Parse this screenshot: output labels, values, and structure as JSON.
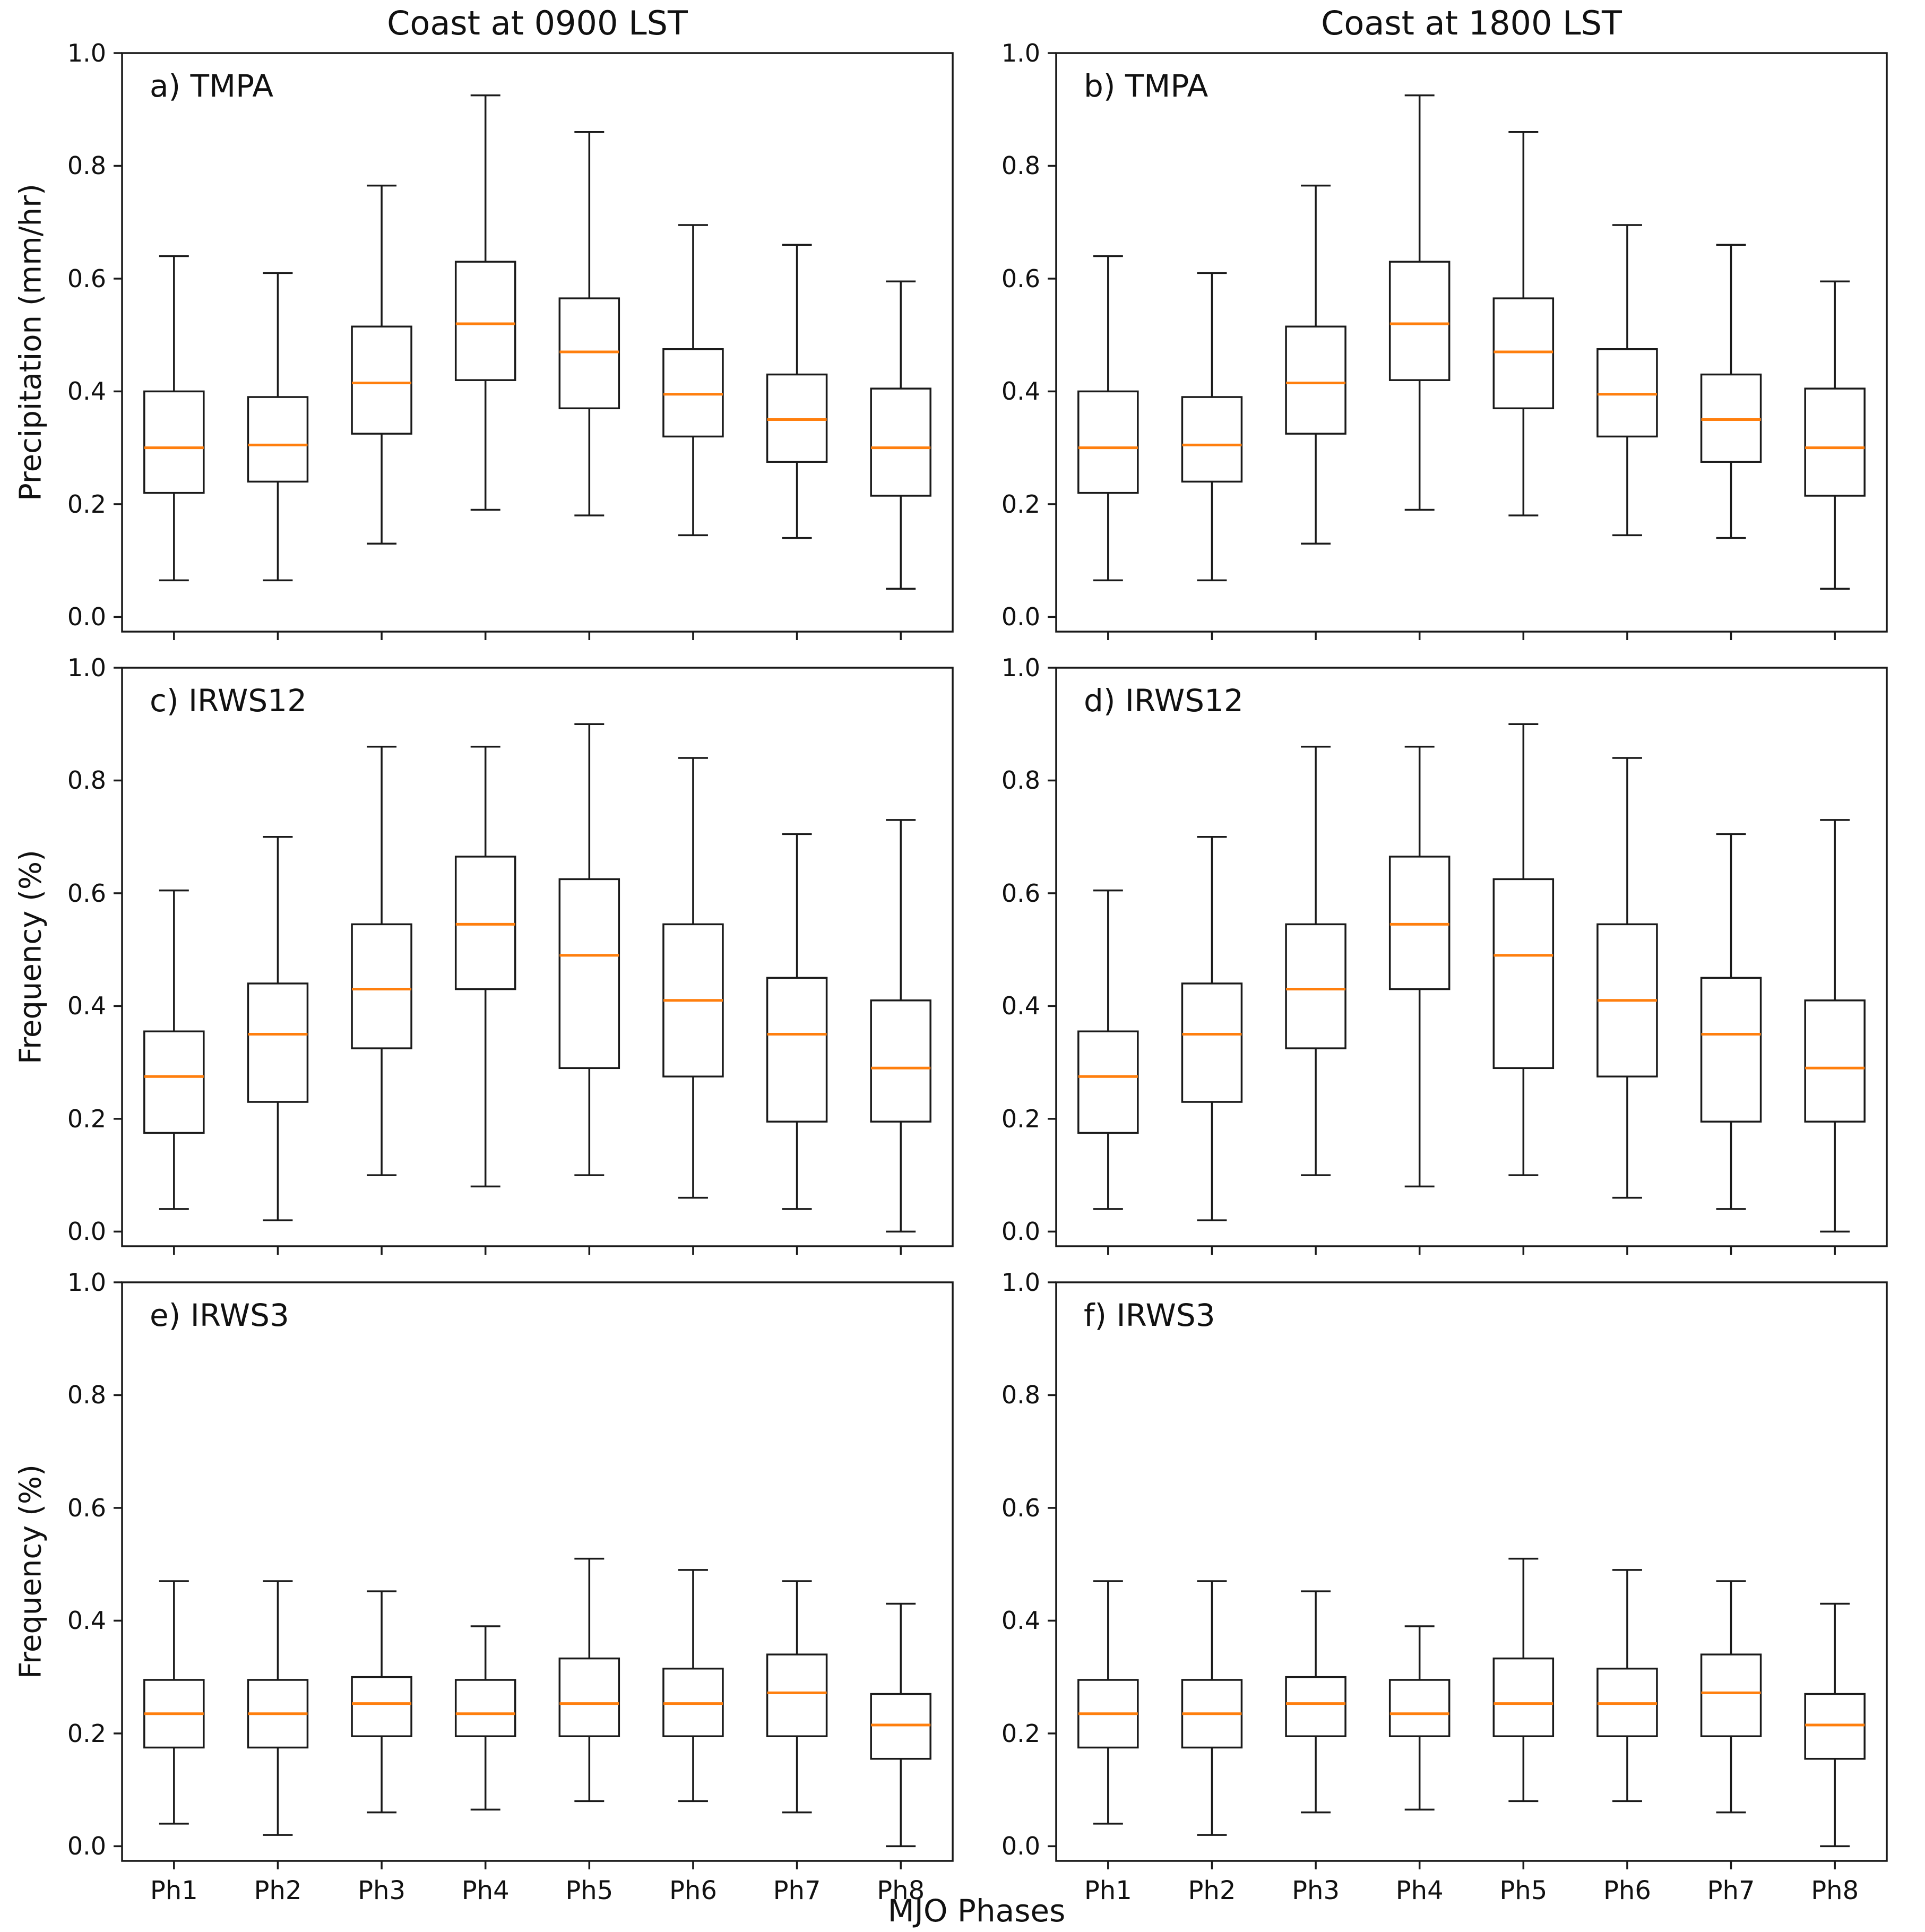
{
  "figure": {
    "column_titles": [
      "Coast at 0900 LST",
      "Coast at 1800 LST"
    ],
    "xlabel": "MJO Phases",
    "line_color": "#1a1a1a",
    "median_color": "#ff7f0e",
    "background_color": "#ffffff"
  },
  "chart_data": [
    {
      "type": "boxplot",
      "panel_id": "a",
      "label": "a) TMPA",
      "column": 0,
      "row": 0,
      "title": "Coast at 0900 LST",
      "ylabel": "Precipitation (mm/hr)",
      "ylim": [
        0.0,
        1.0
      ],
      "yticks": [
        "0.0",
        "0.2",
        "0.4",
        "0.6",
        "0.8",
        "1.0"
      ],
      "categories": [
        "Ph1",
        "Ph2",
        "Ph3",
        "Ph4",
        "Ph5",
        "Ph6",
        "Ph7",
        "Ph8"
      ],
      "box_format": [
        "whisker_low",
        "q1",
        "median",
        "q3",
        "whisker_high"
      ],
      "boxes": [
        [
          0.065,
          0.22,
          0.3,
          0.4,
          0.64
        ],
        [
          0.065,
          0.24,
          0.305,
          0.39,
          0.61
        ],
        [
          0.13,
          0.325,
          0.415,
          0.515,
          0.765
        ],
        [
          0.19,
          0.42,
          0.52,
          0.63,
          0.925
        ],
        [
          0.18,
          0.37,
          0.47,
          0.565,
          0.86
        ],
        [
          0.145,
          0.32,
          0.395,
          0.475,
          0.695
        ],
        [
          0.14,
          0.275,
          0.35,
          0.43,
          0.66
        ],
        [
          0.05,
          0.215,
          0.3,
          0.405,
          0.595
        ]
      ]
    },
    {
      "type": "boxplot",
      "panel_id": "b",
      "label": "b) TMPA",
      "column": 1,
      "row": 0,
      "title": "Coast at 1800 LST",
      "ylabel": "",
      "ylim": [
        0.0,
        1.0
      ],
      "yticks": [
        "0.0",
        "0.2",
        "0.4",
        "0.6",
        "0.8",
        "1.0"
      ],
      "categories": [
        "Ph1",
        "Ph2",
        "Ph3",
        "Ph4",
        "Ph5",
        "Ph6",
        "Ph7",
        "Ph8"
      ],
      "box_format": [
        "whisker_low",
        "q1",
        "median",
        "q3",
        "whisker_high"
      ],
      "boxes": [
        [
          0.065,
          0.22,
          0.3,
          0.4,
          0.64
        ],
        [
          0.065,
          0.24,
          0.305,
          0.39,
          0.61
        ],
        [
          0.13,
          0.325,
          0.415,
          0.515,
          0.765
        ],
        [
          0.19,
          0.42,
          0.52,
          0.63,
          0.925
        ],
        [
          0.18,
          0.37,
          0.47,
          0.565,
          0.86
        ],
        [
          0.145,
          0.32,
          0.395,
          0.475,
          0.695
        ],
        [
          0.14,
          0.275,
          0.35,
          0.43,
          0.66
        ],
        [
          0.05,
          0.215,
          0.3,
          0.405,
          0.595
        ]
      ]
    },
    {
      "type": "boxplot",
      "panel_id": "c",
      "label": "c) IRWS12",
      "column": 0,
      "row": 1,
      "title": "",
      "ylabel": "Frequency (%)",
      "ylim": [
        0.0,
        1.0
      ],
      "yticks": [
        "0.0",
        "0.2",
        "0.4",
        "0.6",
        "0.8",
        "1.0"
      ],
      "categories": [
        "Ph1",
        "Ph2",
        "Ph3",
        "Ph4",
        "Ph5",
        "Ph6",
        "Ph7",
        "Ph8"
      ],
      "box_format": [
        "whisker_low",
        "q1",
        "median",
        "q3",
        "whisker_high"
      ],
      "boxes": [
        [
          0.04,
          0.175,
          0.275,
          0.355,
          0.605
        ],
        [
          0.02,
          0.23,
          0.35,
          0.44,
          0.7
        ],
        [
          0.1,
          0.325,
          0.43,
          0.545,
          0.86
        ],
        [
          0.08,
          0.43,
          0.545,
          0.665,
          0.86
        ],
        [
          0.1,
          0.29,
          0.49,
          0.625,
          0.9
        ],
        [
          0.06,
          0.275,
          0.41,
          0.545,
          0.84
        ],
        [
          0.04,
          0.195,
          0.35,
          0.45,
          0.705
        ],
        [
          0.0,
          0.195,
          0.29,
          0.41,
          0.73
        ]
      ]
    },
    {
      "type": "boxplot",
      "panel_id": "d",
      "label": "d) IRWS12",
      "column": 1,
      "row": 1,
      "title": "",
      "ylabel": "",
      "ylim": [
        0.0,
        1.0
      ],
      "yticks": [
        "0.0",
        "0.2",
        "0.4",
        "0.6",
        "0.8",
        "1.0"
      ],
      "categories": [
        "Ph1",
        "Ph2",
        "Ph3",
        "Ph4",
        "Ph5",
        "Ph6",
        "Ph7",
        "Ph8"
      ],
      "box_format": [
        "whisker_low",
        "q1",
        "median",
        "q3",
        "whisker_high"
      ],
      "boxes": [
        [
          0.04,
          0.175,
          0.275,
          0.355,
          0.605
        ],
        [
          0.02,
          0.23,
          0.35,
          0.44,
          0.7
        ],
        [
          0.1,
          0.325,
          0.43,
          0.545,
          0.86
        ],
        [
          0.08,
          0.43,
          0.545,
          0.665,
          0.86
        ],
        [
          0.1,
          0.29,
          0.49,
          0.625,
          0.9
        ],
        [
          0.06,
          0.275,
          0.41,
          0.545,
          0.84
        ],
        [
          0.04,
          0.195,
          0.35,
          0.45,
          0.705
        ],
        [
          0.0,
          0.195,
          0.29,
          0.41,
          0.73
        ]
      ]
    },
    {
      "type": "boxplot",
      "panel_id": "e",
      "label": "e) IRWS3",
      "column": 0,
      "row": 2,
      "title": "",
      "ylabel": "Frequency (%)",
      "ylim": [
        0.0,
        1.0
      ],
      "yticks": [
        "0.0",
        "0.2",
        "0.4",
        "0.6",
        "0.8",
        "1.0"
      ],
      "categories": [
        "Ph1",
        "Ph2",
        "Ph3",
        "Ph4",
        "Ph5",
        "Ph6",
        "Ph7",
        "Ph8"
      ],
      "box_format": [
        "whisker_low",
        "q1",
        "median",
        "q3",
        "whisker_high"
      ],
      "boxes": [
        [
          0.04,
          0.175,
          0.235,
          0.295,
          0.47
        ],
        [
          0.02,
          0.175,
          0.235,
          0.295,
          0.47
        ],
        [
          0.06,
          0.195,
          0.253,
          0.3,
          0.452
        ],
        [
          0.065,
          0.195,
          0.235,
          0.295,
          0.39
        ],
        [
          0.08,
          0.195,
          0.253,
          0.333,
          0.51
        ],
        [
          0.08,
          0.195,
          0.253,
          0.315,
          0.49
        ],
        [
          0.06,
          0.195,
          0.272,
          0.34,
          0.47
        ],
        [
          0.0,
          0.155,
          0.215,
          0.27,
          0.43
        ]
      ]
    },
    {
      "type": "boxplot",
      "panel_id": "f",
      "label": "f) IRWS3",
      "column": 1,
      "row": 2,
      "title": "",
      "ylabel": "",
      "ylim": [
        0.0,
        1.0
      ],
      "yticks": [
        "0.0",
        "0.2",
        "0.4",
        "0.6",
        "0.8",
        "1.0"
      ],
      "categories": [
        "Ph1",
        "Ph2",
        "Ph3",
        "Ph4",
        "Ph5",
        "Ph6",
        "Ph7",
        "Ph8"
      ],
      "box_format": [
        "whisker_low",
        "q1",
        "median",
        "q3",
        "whisker_high"
      ],
      "boxes": [
        [
          0.04,
          0.175,
          0.235,
          0.295,
          0.47
        ],
        [
          0.02,
          0.175,
          0.235,
          0.295,
          0.47
        ],
        [
          0.06,
          0.195,
          0.253,
          0.3,
          0.452
        ],
        [
          0.065,
          0.195,
          0.235,
          0.295,
          0.39
        ],
        [
          0.08,
          0.195,
          0.253,
          0.333,
          0.51
        ],
        [
          0.08,
          0.195,
          0.253,
          0.315,
          0.49
        ],
        [
          0.06,
          0.195,
          0.272,
          0.34,
          0.47
        ],
        [
          0.0,
          0.155,
          0.215,
          0.27,
          0.43
        ]
      ]
    }
  ]
}
